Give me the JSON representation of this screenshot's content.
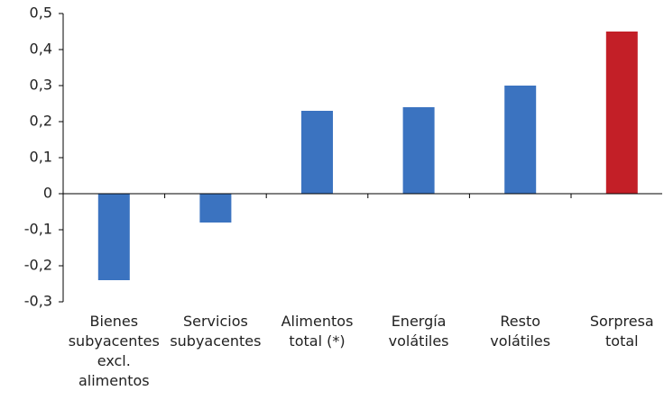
{
  "chart_data": {
    "type": "bar",
    "categories": [
      "Bienes subyacentes excl. alimentos",
      "Servicios subyacentes",
      "Alimentos total (*)",
      "Energía volátiles",
      "Resto volátiles",
      "Sorpresa total"
    ],
    "values": [
      -0.24,
      -0.08,
      0.23,
      0.24,
      0.3,
      0.45
    ],
    "colors": [
      "#3b73c0",
      "#3b73c0",
      "#3b73c0",
      "#3b73c0",
      "#3b73c0",
      "#c31f27"
    ],
    "ylim": [
      -0.3,
      0.5
    ],
    "yticks": [
      {
        "value": -0.3,
        "label": "-0,3"
      },
      {
        "value": -0.2,
        "label": "-0,2"
      },
      {
        "value": -0.1,
        "label": "-0,1"
      },
      0,
      {
        "value": 0.1,
        "label": "0,1"
      },
      {
        "value": 0.2,
        "label": "0,2"
      },
      {
        "value": 0.3,
        "label": "0,3"
      },
      {
        "value": 0.4,
        "label": "0,4"
      },
      {
        "value": 0.5,
        "label": "0,5"
      }
    ],
    "grid": false
  }
}
